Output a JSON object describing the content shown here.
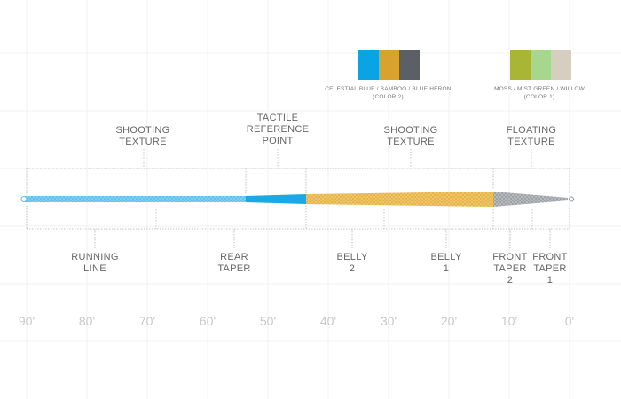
{
  "swatches": {
    "color2": {
      "colors": [
        "#0aa3e3",
        "#d9a22f",
        "#5a6066"
      ],
      "caption_line1": "CELESTIAL BLUE / BAMBOO / BLUE HERON",
      "caption_line2": "(COLOR 2)"
    },
    "color1": {
      "colors": [
        "#a9b534",
        "#a7d68f",
        "#d6cfc0"
      ],
      "caption_line1": "MOSS / MIST GREEN / WILLOW",
      "caption_line2": "(COLOR 1)"
    }
  },
  "top_labels": {
    "shooting_texture_left": [
      "SHOOTING",
      "TEXTURE"
    ],
    "tactile_reference": [
      "TACTILE",
      "REFERENCE",
      "POINT"
    ],
    "shooting_texture_right": [
      "SHOOTING",
      "TEXTURE"
    ],
    "floating_texture": [
      "FLOATING",
      "TEXTURE"
    ]
  },
  "bottom_labels": {
    "running_line": [
      "RUNNING",
      "LINE"
    ],
    "rear_taper": [
      "REAR",
      "TAPER"
    ],
    "belly_2": [
      "BELLY",
      "2"
    ],
    "belly_1": [
      "BELLY",
      "1"
    ],
    "front_taper_2": [
      "FRONT",
      "TAPER",
      "2"
    ],
    "front_taper_1": [
      "FRONT",
      "TAPER",
      "1"
    ]
  },
  "distances": [
    "90'",
    "80'",
    "70'",
    "60'",
    "50'",
    "40'",
    "30'",
    "20'",
    "10'",
    "0'"
  ],
  "line_colors": {
    "running": "#5cc0ec",
    "rear": "#1ba9e6",
    "belly": "#e6b441",
    "front": "#b9bcc0",
    "tip": "#8a9096"
  }
}
